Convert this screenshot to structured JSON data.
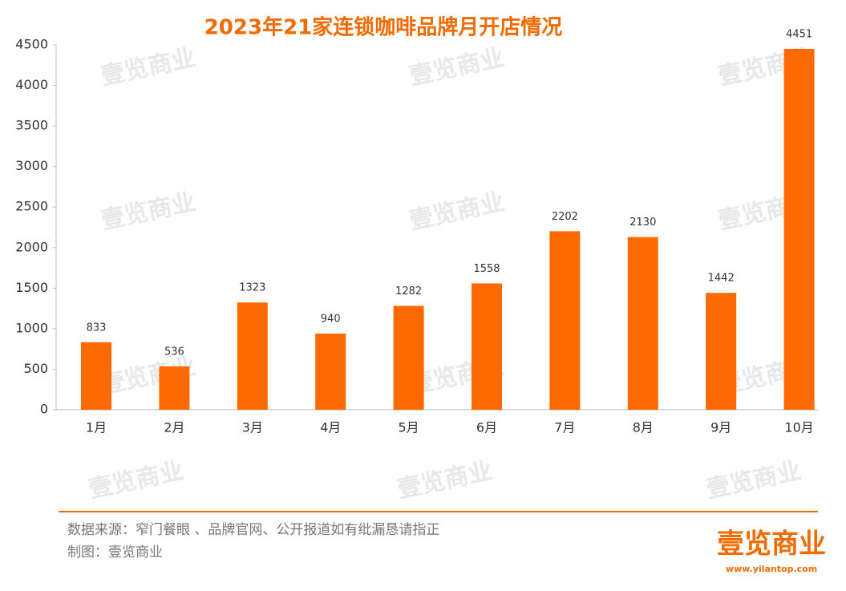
{
  "chart_data": {
    "type": "bar",
    "title": "2023年21家连锁咖啡品牌月开店情况",
    "categories": [
      "1月",
      "2月",
      "3月",
      "4月",
      "5月",
      "6月",
      "7月",
      "8月",
      "9月",
      "10月"
    ],
    "values": [
      833,
      536,
      1323,
      940,
      1282,
      1558,
      2202,
      2130,
      1442,
      4451
    ],
    "color": "#ff6a00",
    "ylim": [
      0,
      4500
    ],
    "yticks": [
      0,
      500,
      1000,
      1500,
      2000,
      2500,
      3000,
      3500,
      4000,
      4500
    ],
    "grid": false,
    "source": "数据来源：窄门餐眼 、品牌官网、公开报道如有纰漏恳请指正",
    "credit": "制图：壹览商业",
    "logo": "壹览商业",
    "url": "www.yilantop.com",
    "watermark": "壹览商业"
  }
}
